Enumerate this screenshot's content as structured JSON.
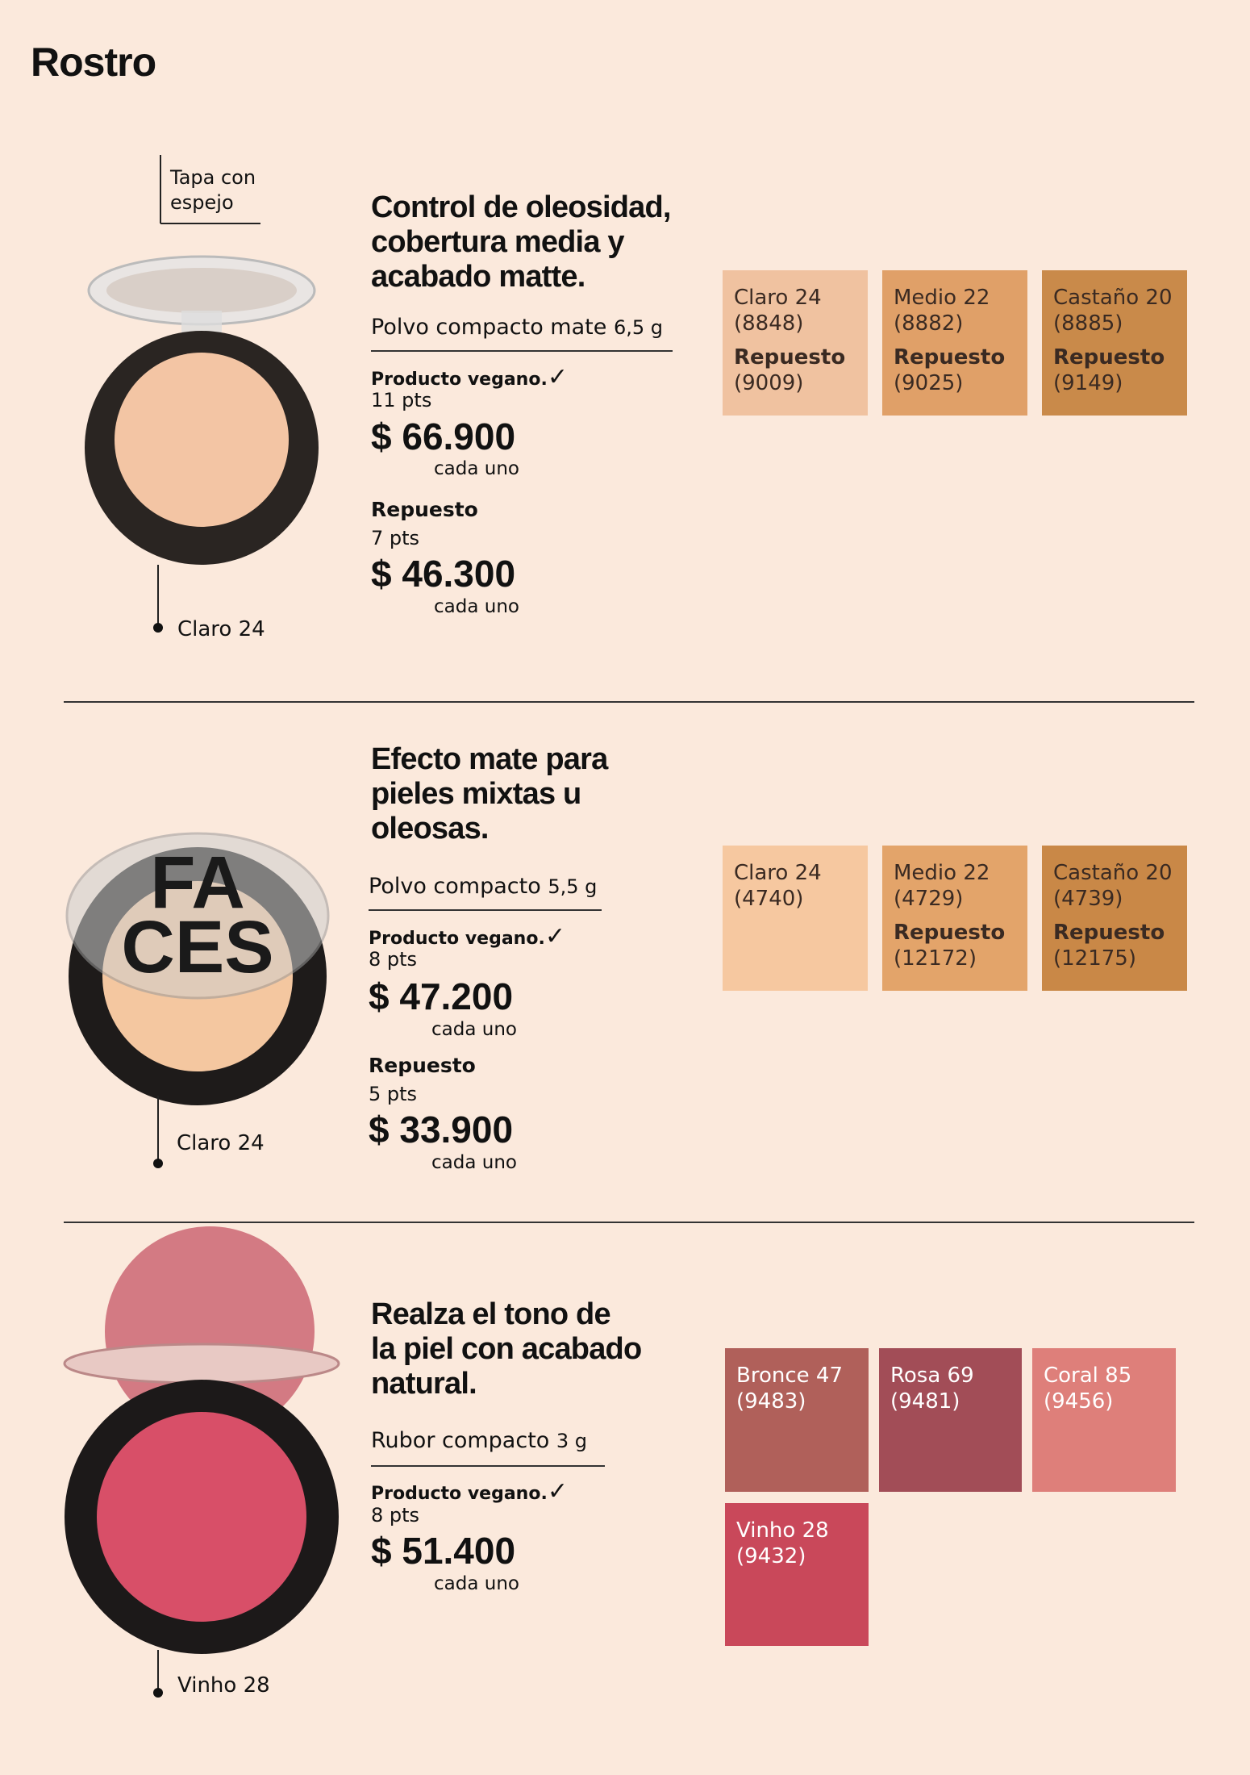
{
  "header": {
    "title": "Rostro"
  },
  "products": [
    {
      "annotation": "Tapa con espejo",
      "shade_label": "Claro 24",
      "heading": [
        "Control de oleosidad,",
        "cobertura media y",
        "acabado matte."
      ],
      "name": "Polvo compacto mate",
      "size": "6,5 g",
      "vegan": "Producto vegano.",
      "points": "11 pts",
      "price": "$ 66.900",
      "price_note": "cada uno",
      "refill": {
        "label": "Repuesto",
        "points": "7 pts",
        "price": "$ 46.300",
        "price_note": "cada uno"
      },
      "swatches": [
        {
          "name": "Claro 24",
          "code": "(8848)",
          "refill_label": "Repuesto",
          "refill_code": "(9009)"
        },
        {
          "name": "Medio 22",
          "code": "(8882)",
          "refill_label": "Repuesto",
          "refill_code": "(9025)"
        },
        {
          "name": "Castaño 20",
          "code": "(8885)",
          "refill_label": "Repuesto",
          "refill_code": "(9149)"
        }
      ]
    },
    {
      "image_text": [
        "FA",
        "CES"
      ],
      "shade_label": "Claro 24",
      "heading": [
        "Efecto mate para",
        "pieles mixtas u",
        "oleosas."
      ],
      "name": "Polvo compacto",
      "size": "5,5 g",
      "vegan": "Producto vegano.",
      "points": "8 pts",
      "price": "$ 47.200",
      "price_note": "cada uno",
      "refill": {
        "label": "Repuesto",
        "points": "5 pts",
        "price": "$ 33.900",
        "price_note": "cada uno"
      },
      "swatches": [
        {
          "name": "Claro 24",
          "code": "(4740)"
        },
        {
          "name": "Medio 22",
          "code": "(4729)",
          "refill_label": "Repuesto",
          "refill_code": "(12172)"
        },
        {
          "name": "Castaño 20",
          "code": "(4739)",
          "refill_label": "Repuesto",
          "refill_code": "(12175)"
        }
      ]
    },
    {
      "shade_label": "Vinho 28",
      "heading": [
        "Realza el tono de",
        "la piel con acabado",
        "natural."
      ],
      "name": "Rubor compacto",
      "size": "3 g",
      "vegan": "Producto vegano.",
      "points": "8 pts",
      "price": "$ 51.400",
      "price_note": "cada uno",
      "swatches": [
        {
          "name": "Bronce 47",
          "code": "(9483)"
        },
        {
          "name": "Rosa 69",
          "code": "(9481)"
        },
        {
          "name": "Coral 85",
          "code": "(9456)"
        },
        {
          "name": "Vinho 28",
          "code": "(9432)"
        }
      ]
    }
  ]
}
